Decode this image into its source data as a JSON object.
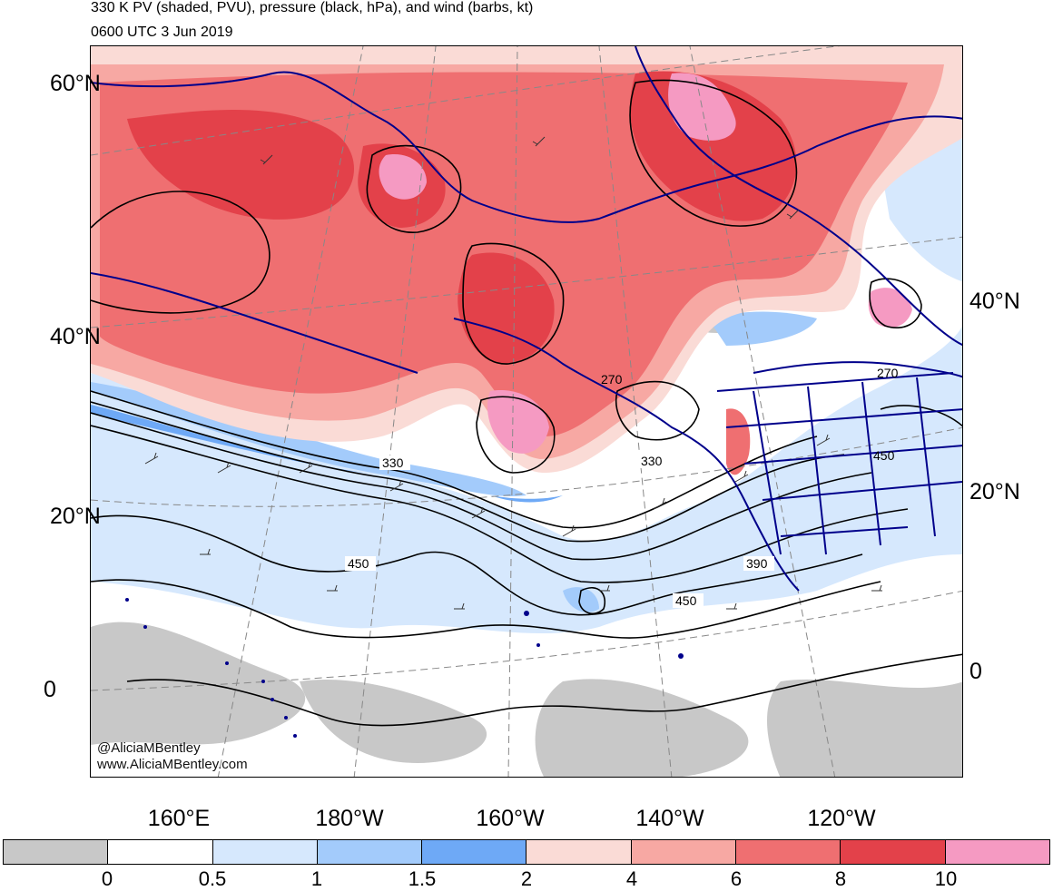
{
  "header": {
    "title": "330 K PV (shaded, PVU), pressure (black, hPa), and wind (barbs, kt)",
    "valid_time": "0600 UTC 3 Jun 2019"
  },
  "map": {
    "projection": "polar stereographic",
    "region": "North Pacific, Alaska and western North America",
    "left_lat_labels": [
      "60°N",
      "40°N",
      "20°N",
      "0"
    ],
    "right_lat_labels": [
      "40°N",
      "20°N",
      "0"
    ],
    "lon_labels": [
      "160°E",
      "180°W",
      "160°W",
      "140°W",
      "120°W"
    ],
    "isobar_labels": [
      "330",
      "330",
      "450",
      "450",
      "390",
      "270",
      "270",
      "450"
    ],
    "pv_colors": {
      "lt0.5_gray": "#c8c8c8",
      "0_0.5_white": "#ffffff",
      "0.5_1": "#d6e8fd",
      "1_1.5": "#a3cbfb",
      "1.5_2": "#6ea9f6",
      "2_4": "#fadbd6",
      "4_6": "#f7a8a3",
      "6_8": "#ef6f71",
      "8_10": "#e3414a",
      "gt10": "#f59ac2"
    },
    "coastline_color": "#00008b",
    "watermark": [
      "@AliciaMBentley",
      "www.AliciaMBentley.com"
    ]
  },
  "colorbar": {
    "tick_labels": [
      "0",
      "0.5",
      "1",
      "1.5",
      "2",
      "4",
      "6",
      "8",
      "10"
    ],
    "colors": [
      "#c8c8c8",
      "#ffffff",
      "#d6e8fd",
      "#a3cbfb",
      "#6ea9f6",
      "#fadbd6",
      "#f7a8a3",
      "#ef6f71",
      "#e3414a",
      "#f59ac2"
    ]
  }
}
